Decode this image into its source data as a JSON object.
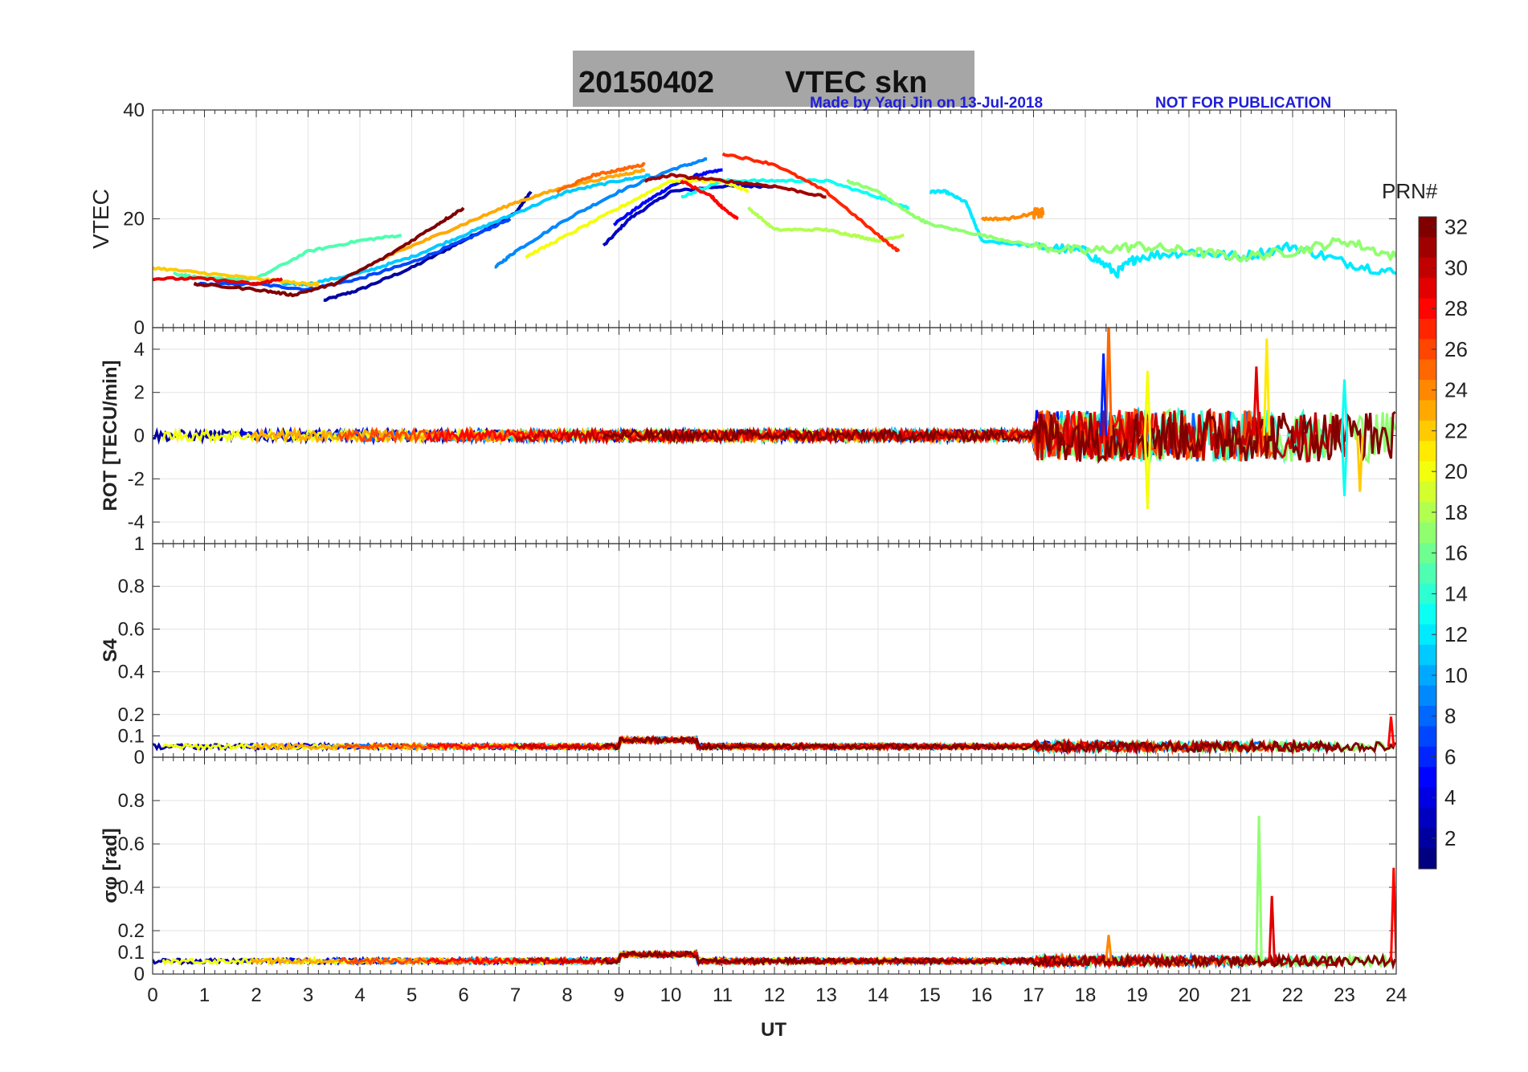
{
  "title": {
    "date": "20150402",
    "product": "VTEC  skn",
    "box_color": "#a6a6a6"
  },
  "credit": {
    "author_line": "Made by Yaqi Jin on 13-Jul-2018",
    "notice": "NOT FOR PUBLICATION",
    "color": "#1f1fd6"
  },
  "xaxis": {
    "label": "UT",
    "min": 0,
    "max": 24,
    "ticks": [
      "0",
      "1",
      "2",
      "3",
      "4",
      "5",
      "6",
      "7",
      "8",
      "9",
      "10",
      "11",
      "12",
      "13",
      "14",
      "15",
      "16",
      "17",
      "18",
      "19",
      "20",
      "21",
      "22",
      "23",
      "24"
    ]
  },
  "colorbar": {
    "label": "PRN#",
    "min": 1,
    "max": 32,
    "ticks": [
      "2",
      "4",
      "6",
      "8",
      "10",
      "12",
      "14",
      "16",
      "18",
      "20",
      "22",
      "24",
      "26",
      "28",
      "30",
      "32"
    ],
    "colormap": "jet"
  },
  "chart_data": [
    {
      "type": "line",
      "panel": "VTEC",
      "ylabel": "VTEC",
      "ylim": [
        0,
        40
      ],
      "yticks": [
        "0",
        "20",
        "40"
      ],
      "grid": true,
      "series": [
        {
          "prn": 2,
          "x": [
            3.3,
            4,
            5,
            6,
            7,
            7.3
          ],
          "y": [
            5,
            7,
            11,
            16,
            21,
            25
          ]
        },
        {
          "prn": 3,
          "x": [
            8.7,
            9.2,
            10,
            11,
            12
          ],
          "y": [
            15,
            20,
            25,
            26,
            26
          ]
        },
        {
          "prn": 5,
          "x": [
            8.9,
            9.5,
            10,
            10.5,
            11
          ],
          "y": [
            19,
            23,
            26,
            28,
            29
          ]
        },
        {
          "prn": 7,
          "x": [
            0.8,
            2,
            3,
            4,
            5,
            6,
            6.9
          ],
          "y": [
            8,
            8,
            7,
            9,
            12,
            16,
            20
          ]
        },
        {
          "prn": 9,
          "x": [
            6.6,
            7,
            8,
            9,
            10,
            10.7
          ],
          "y": [
            11,
            14,
            20,
            25,
            29,
            31
          ]
        },
        {
          "prn": 11,
          "x": [
            2.5,
            3,
            4,
            5,
            6,
            7,
            8,
            9,
            9.6
          ],
          "y": [
            8,
            8,
            10,
            13,
            17,
            21,
            25,
            27,
            28
          ]
        },
        {
          "prn": 12,
          "x": [
            15.0,
            15.3,
            15.7,
            16,
            17,
            18,
            18.6,
            19,
            20,
            21,
            22,
            23,
            24
          ],
          "y": [
            25,
            25,
            23,
            16,
            15,
            14,
            10,
            13,
            14,
            13,
            15,
            12,
            10
          ]
        },
        {
          "prn": 13,
          "x": [
            10.2,
            11,
            12,
            13,
            14,
            14.6
          ],
          "y": [
            24,
            27,
            27,
            27,
            24,
            22
          ]
        },
        {
          "prn": 15,
          "x": [
            0.4,
            1,
            2,
            3,
            4,
            4.8
          ],
          "y": [
            10,
            9,
            9,
            14,
            16,
            17
          ]
        },
        {
          "prn": 17,
          "x": [
            13.4,
            14,
            14.6,
            15,
            16,
            17,
            18,
            19,
            20,
            21,
            22,
            23,
            24
          ],
          "y": [
            27,
            25,
            21,
            19,
            17,
            15,
            14,
            15,
            14,
            13,
            14,
            16,
            13
          ]
        },
        {
          "prn": 18,
          "x": [
            11.5,
            12,
            13,
            13.5,
            14,
            14.5
          ],
          "y": [
            22,
            18,
            18,
            17,
            16,
            17
          ]
        },
        {
          "prn": 20,
          "x": [
            7.2,
            8,
            9,
            10,
            11,
            11.5
          ],
          "y": [
            13,
            17,
            22,
            27,
            27,
            25
          ]
        },
        {
          "prn": 22,
          "x": [
            0,
            1,
            2,
            3,
            3.2
          ],
          "y": [
            11,
            10,
            9,
            8,
            8
          ]
        },
        {
          "prn": 23,
          "x": [
            4.5,
            5,
            6,
            7,
            8,
            9,
            9.5
          ],
          "y": [
            13,
            15,
            19,
            23,
            26,
            28,
            29
          ]
        },
        {
          "prn": 24,
          "x": [
            16,
            16.5,
            17,
            17.2
          ],
          "y": [
            20,
            20,
            21,
            21
          ]
        },
        {
          "prn": 25,
          "x": [
            7.8,
            8.5,
            9,
            9.5
          ],
          "y": [
            25,
            28,
            29,
            30
          ]
        },
        {
          "prn": 27,
          "x": [
            11,
            12,
            13,
            14,
            14.4
          ],
          "y": [
            32,
            30,
            25,
            17,
            14
          ]
        },
        {
          "prn": 28,
          "x": [
            10.2,
            10.8,
            11,
            11.3
          ],
          "y": [
            27,
            24,
            22,
            20
          ]
        },
        {
          "prn": 29,
          "x": [
            0,
            1,
            2,
            2.5
          ],
          "y": [
            9,
            9,
            8,
            9
          ]
        },
        {
          "prn": 31,
          "x": [
            9.5,
            10,
            11,
            12,
            13
          ],
          "y": [
            27,
            28,
            27,
            26,
            24
          ]
        },
        {
          "prn": 32,
          "x": [
            0.8,
            2,
            2.7,
            3.5,
            4.5,
            5.5,
            6
          ],
          "y": [
            8,
            7,
            6,
            8,
            13,
            19,
            22
          ]
        }
      ]
    },
    {
      "type": "line",
      "panel": "ROT",
      "ylabel": "ROT [TECU/min]",
      "ylim": [
        -5,
        5
      ],
      "yticks": [
        "-4",
        "-2",
        "0",
        "2",
        "4"
      ],
      "grid": true,
      "series_note_values": {
        "baseline": 0.0,
        "spikes": [
          {
            "x": 18.45,
            "y": 5.4,
            "prn": 25
          },
          {
            "x": 18.35,
            "y": 3.8,
            "prn": 6
          },
          {
            "x": 19.2,
            "y": -3.4,
            "prn": 20
          },
          {
            "x": 19.2,
            "y": 3.0,
            "prn": 20
          },
          {
            "x": 21.3,
            "y": 3.2,
            "prn": 29
          },
          {
            "x": 21.5,
            "y": 4.5,
            "prn": 21
          },
          {
            "x": 23.0,
            "y": 2.6,
            "prn": 13
          },
          {
            "x": 23.0,
            "y": -2.8,
            "prn": 13
          },
          {
            "x": 23.3,
            "y": -2.6,
            "prn": 22
          }
        ]
      }
    },
    {
      "type": "line",
      "panel": "S4",
      "ylabel": "S4",
      "ylim": [
        0,
        1
      ],
      "yticks": [
        "0",
        "0.1",
        "0.2",
        "0.4",
        "0.6",
        "0.8",
        "1"
      ],
      "grid": true,
      "typical_level": 0.05,
      "spikes": [
        {
          "x": 23.9,
          "y": 0.19,
          "prn": 28
        }
      ]
    },
    {
      "type": "line",
      "panel": "sigma_phi",
      "ylabel": "σφ [rad]",
      "ylim": [
        0,
        1
      ],
      "yticks": [
        "0",
        "0.1",
        "0.2",
        "0.4",
        "0.6",
        "0.8"
      ],
      "grid": true,
      "typical_level": 0.06,
      "spikes": [
        {
          "x": 21.35,
          "y": 0.73,
          "prn": 17
        },
        {
          "x": 21.6,
          "y": 0.36,
          "prn": 29
        },
        {
          "x": 23.95,
          "y": 0.49,
          "prn": 28
        },
        {
          "x": 18.45,
          "y": 0.18,
          "prn": 24
        }
      ]
    }
  ]
}
